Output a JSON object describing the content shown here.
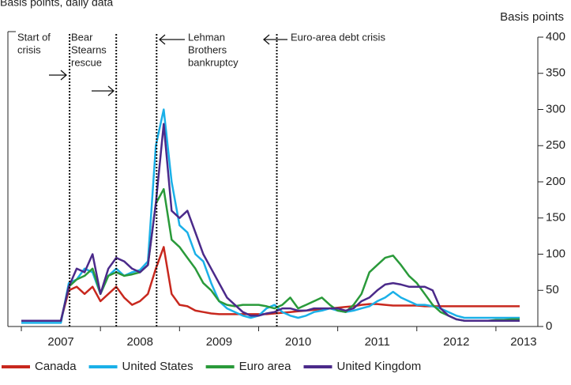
{
  "chart_data": {
    "type": "line",
    "subtitle": "Basis points, daily data",
    "y_axis_label": "Basis points",
    "x": [
      2007.0,
      2007.1,
      2007.2,
      2007.3,
      2007.4,
      2007.5,
      2007.6,
      2007.7,
      2007.8,
      2007.9,
      2008.0,
      2008.1,
      2008.2,
      2008.3,
      2008.4,
      2008.5,
      2008.6,
      2008.7,
      2008.8,
      2008.9,
      2009.0,
      2009.1,
      2009.2,
      2009.3,
      2009.4,
      2009.5,
      2009.6,
      2009.7,
      2009.8,
      2009.9,
      2010.0,
      2010.1,
      2010.2,
      2010.3,
      2010.4,
      2010.5,
      2010.6,
      2010.7,
      2010.8,
      2010.9,
      2011.0,
      2011.1,
      2011.2,
      2011.3,
      2011.4,
      2011.5,
      2011.6,
      2011.7,
      2011.8,
      2011.9,
      2012.0,
      2012.1,
      2012.2,
      2012.3,
      2012.4,
      2012.5,
      2012.6,
      2012.7,
      2012.8,
      2012.9,
      2013.0,
      2013.1,
      2013.2,
      2013.3
    ],
    "series": [
      {
        "name": "Canada",
        "color": "#c8281e",
        "values": [
          8,
          8,
          8,
          8,
          8,
          8,
          50,
          55,
          45,
          55,
          35,
          45,
          55,
          40,
          30,
          35,
          45,
          80,
          110,
          45,
          30,
          28,
          22,
          20,
          18,
          17,
          17,
          17,
          17,
          17,
          17,
          17,
          18,
          19,
          20,
          21,
          22,
          23,
          24,
          25,
          26,
          27,
          28,
          30,
          31,
          31,
          30,
          29,
          29,
          29,
          29,
          28,
          28,
          28,
          28,
          28,
          28,
          28,
          28,
          28,
          28,
          28,
          28,
          28
        ]
      },
      {
        "name": "United States",
        "color": "#1ab0e8",
        "values": [
          5,
          5,
          5,
          5,
          5,
          5,
          60,
          65,
          80,
          75,
          45,
          70,
          80,
          70,
          75,
          78,
          90,
          250,
          300,
          200,
          140,
          130,
          100,
          90,
          60,
          35,
          25,
          20,
          15,
          12,
          15,
          25,
          30,
          20,
          15,
          12,
          15,
          20,
          22,
          25,
          22,
          20,
          22,
          25,
          28,
          35,
          40,
          48,
          40,
          35,
          30,
          30,
          28,
          25,
          20,
          15,
          12,
          12,
          12,
          12,
          12,
          12,
          12,
          12
        ]
      },
      {
        "name": "Euro area",
        "color": "#2a9a3a",
        "values": [
          8,
          8,
          8,
          8,
          8,
          8,
          55,
          65,
          70,
          80,
          45,
          70,
          75,
          70,
          72,
          75,
          85,
          170,
          190,
          120,
          110,
          95,
          80,
          60,
          50,
          35,
          30,
          28,
          30,
          30,
          30,
          28,
          25,
          30,
          40,
          25,
          30,
          35,
          40,
          30,
          22,
          20,
          30,
          45,
          75,
          85,
          95,
          98,
          85,
          70,
          60,
          45,
          30,
          20,
          15,
          10,
          8,
          8,
          8,
          8,
          9,
          9,
          10,
          10
        ]
      },
      {
        "name": "United Kingdom",
        "color": "#4b2a8a",
        "values": [
          8,
          8,
          8,
          8,
          8,
          8,
          55,
          80,
          75,
          100,
          45,
          80,
          95,
          90,
          80,
          75,
          85,
          170,
          280,
          160,
          150,
          160,
          130,
          100,
          80,
          60,
          40,
          30,
          20,
          15,
          15,
          18,
          20,
          25,
          25,
          22,
          22,
          25,
          25,
          25,
          25,
          22,
          25,
          35,
          40,
          50,
          58,
          60,
          58,
          55,
          55,
          55,
          50,
          25,
          15,
          10,
          8,
          8,
          8,
          8,
          8,
          8,
          8,
          8
        ]
      }
    ],
    "xlim": [
      2006.83,
      2013.53
    ],
    "xticks": [
      {
        "value": 2007.5,
        "label": "2007"
      },
      {
        "value": 2008.5,
        "label": "2008"
      },
      {
        "value": 2009.5,
        "label": "2009"
      },
      {
        "value": 2010.5,
        "label": "2010"
      },
      {
        "value": 2011.5,
        "label": "2011"
      },
      {
        "value": 2012.5,
        "label": "2012"
      },
      {
        "value": 2013.35,
        "label": "2013"
      }
    ],
    "ylim": [
      0,
      400
    ],
    "yticks": [
      0,
      50,
      100,
      150,
      200,
      250,
      300,
      350,
      400
    ],
    "annotations": [
      {
        "x": 2007.61,
        "lines": [
          "Start of",
          "crisis"
        ]
      },
      {
        "x": 2008.2,
        "lines": [
          "Bear",
          "Stearns",
          "rescue"
        ]
      },
      {
        "x": 2008.71,
        "lines": [
          "Lehman",
          "Brothers",
          "bankruptcy"
        ]
      },
      {
        "x": 2010.23,
        "lines": [
          "Euro-area debt crisis"
        ]
      }
    ]
  }
}
